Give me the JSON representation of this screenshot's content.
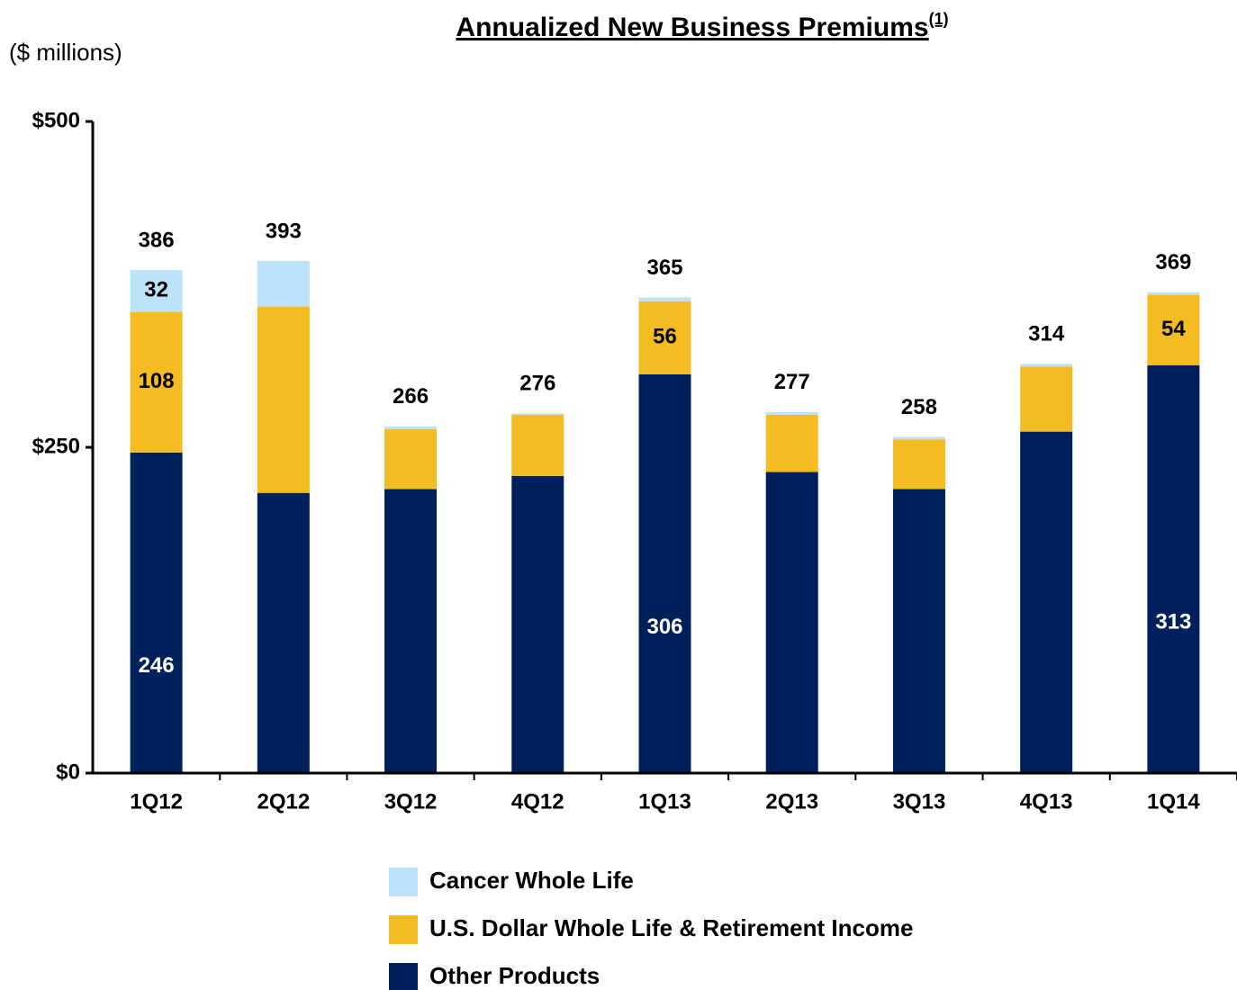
{
  "chart_data": {
    "type": "stacked_bar",
    "title": "Annualized New Business Premiums",
    "title_note": "(1)",
    "unit_label": "($ millions)",
    "categories": [
      "1Q12",
      "2Q12",
      "3Q12",
      "4Q12",
      "1Q13",
      "2Q13",
      "3Q13",
      "4Q13",
      "1Q14"
    ],
    "series": [
      {
        "name": "Other Products",
        "color": "#00205b",
        "values": [
          246,
          215,
          218,
          228,
          306,
          231,
          218,
          262,
          313
        ],
        "value_labels": [
          "246",
          null,
          null,
          null,
          "306",
          null,
          null,
          null,
          "313"
        ]
      },
      {
        "name": "U.S. Dollar Whole Life & Retirement Income",
        "color": "#f4bb22",
        "values": [
          108,
          143,
          46,
          47,
          56,
          44,
          38,
          50,
          54
        ],
        "value_labels": [
          "108",
          null,
          null,
          null,
          "56",
          null,
          null,
          null,
          "54"
        ]
      },
      {
        "name": "Cancer Whole Life",
        "color": "#bde3fb",
        "values": [
          32,
          35,
          2,
          1,
          3,
          2,
          2,
          2,
          2
        ],
        "value_labels": [
          "32",
          null,
          null,
          null,
          null,
          null,
          null,
          null,
          null
        ]
      }
    ],
    "totals": [
      386,
      393,
      266,
      276,
      365,
      277,
      258,
      314,
      369
    ],
    "ylim": [
      0,
      500
    ],
    "yticks": [
      {
        "value": 0,
        "label": "$0"
      },
      {
        "value": 250,
        "label": "$250"
      },
      {
        "value": 500,
        "label": "$500"
      }
    ],
    "grid": false
  }
}
